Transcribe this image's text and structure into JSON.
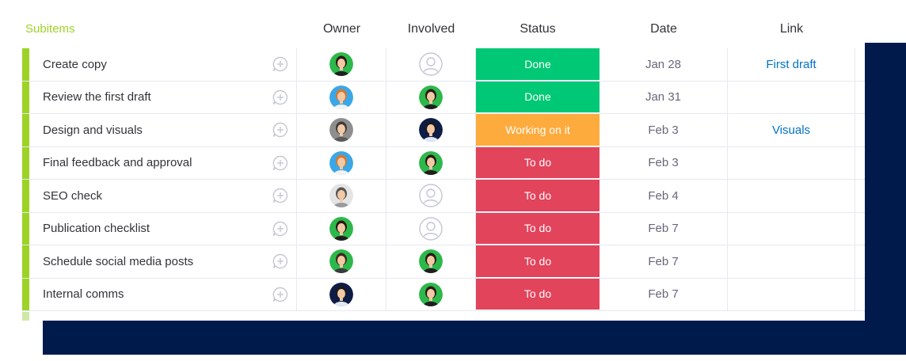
{
  "header": {
    "subitems": "Subitems",
    "owner": "Owner",
    "involved": "Involved",
    "status": "Status",
    "date": "Date",
    "link": "Link"
  },
  "colors": {
    "accent_green": "#9cd326",
    "done": "#00c875",
    "working": "#fdab3d",
    "todo": "#e2445c",
    "link": "#0073c8",
    "navy": "#011a4c"
  },
  "rows": [
    {
      "name": "Create copy",
      "owner": "avatar-green-woman",
      "involved": "avatar-empty",
      "status": "Done",
      "status_color": "#00c875",
      "date": "Jan 28",
      "link": "First draft"
    },
    {
      "name": "Review the first draft",
      "owner": "avatar-blue-woman",
      "involved": "avatar-green-woman",
      "status": "Done",
      "status_color": "#00c875",
      "date": "Jan 31",
      "link": ""
    },
    {
      "name": "Design and visuals",
      "owner": "avatar-gray-man",
      "involved": "avatar-navy-man",
      "status": "Working on it",
      "status_color": "#fdab3d",
      "date": "Feb 3",
      "link": "Visuals"
    },
    {
      "name": "Final feedback and approval",
      "owner": "avatar-blue-woman",
      "involved": "avatar-green-woman",
      "status": "To do",
      "status_color": "#e2445c",
      "date": "Feb 3",
      "link": ""
    },
    {
      "name": "SEO check",
      "owner": "avatar-gray-man-2",
      "involved": "avatar-empty",
      "status": "To do",
      "status_color": "#e2445c",
      "date": "Feb 4",
      "link": ""
    },
    {
      "name": "Publication checklist",
      "owner": "avatar-green-woman",
      "involved": "avatar-empty",
      "status": "To do",
      "status_color": "#e2445c",
      "date": "Feb 7",
      "link": ""
    },
    {
      "name": "Schedule social media posts",
      "owner": "avatar-green-man",
      "involved": "avatar-green-woman",
      "status": "To do",
      "status_color": "#e2445c",
      "date": "Feb 7",
      "link": ""
    },
    {
      "name": "Internal comms",
      "owner": "avatar-navy-man",
      "involved": "avatar-green-woman",
      "status": "To do",
      "status_color": "#e2445c",
      "date": "Feb 7",
      "link": ""
    }
  ]
}
